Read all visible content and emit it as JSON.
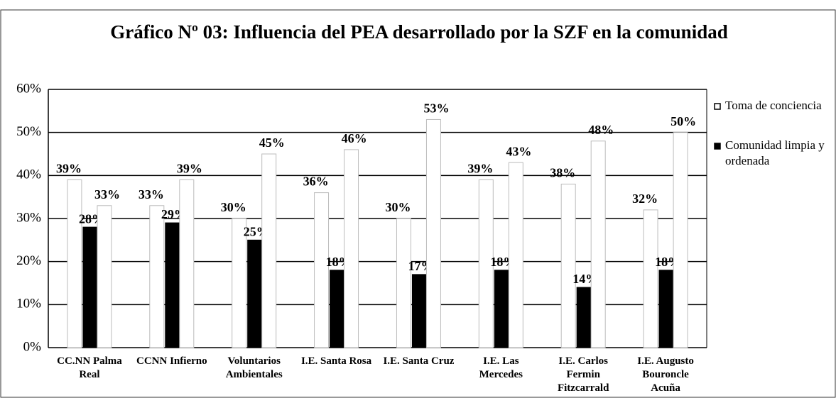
{
  "chart_data": {
    "type": "bar",
    "title": "Gráfico Nº 03: Influencia del PEA  desarrollado por la SZF en la comunidad",
    "categories": [
      "CC.NN Palma Real",
      "CCNN Infierno",
      "Voluntarios Ambientales",
      "I.E. Santa Rosa",
      "I.E. Santa Cruz",
      "I.E. Las Mercedes",
      "I.E. Carlos Fermin Fitzcarrald",
      "I.E. Augusto Bouroncle Acuña"
    ],
    "series": [
      {
        "name": "Toma de conciencia",
        "color": "#ffffff",
        "values": [
          39,
          33,
          30,
          36,
          30,
          39,
          38,
          32
        ],
        "value_labels": [
          "39%",
          "33%",
          "30%",
          "36%",
          "30%",
          "39%",
          "38%",
          "32%"
        ]
      },
      {
        "name": "Comunidad limpia y ordenada",
        "color": "#000000",
        "values": [
          28,
          29,
          25,
          18,
          17,
          18,
          14,
          18
        ],
        "value_labels": [
          "28%",
          "29%",
          "25%",
          "18%",
          "17%",
          "18%",
          "14%",
          "18%"
        ]
      },
      {
        "name": null,
        "color": "#ffffff",
        "values": [
          33,
          39,
          45,
          46,
          53,
          43,
          48,
          50
        ],
        "value_labels": [
          "33%",
          "39%",
          "45%",
          "46%",
          "53%",
          "43%",
          "48%",
          "50%"
        ]
      }
    ],
    "ylim": [
      0,
      60
    ],
    "yticks": [
      {
        "value": 0,
        "label": "0%"
      },
      {
        "value": 10,
        "label": "10%"
      },
      {
        "value": 20,
        "label": "20%"
      },
      {
        "value": 30,
        "label": "30%"
      },
      {
        "value": 40,
        "label": "40%"
      },
      {
        "value": 50,
        "label": "50%"
      },
      {
        "value": 60,
        "label": "60%"
      }
    ],
    "grid": true
  }
}
